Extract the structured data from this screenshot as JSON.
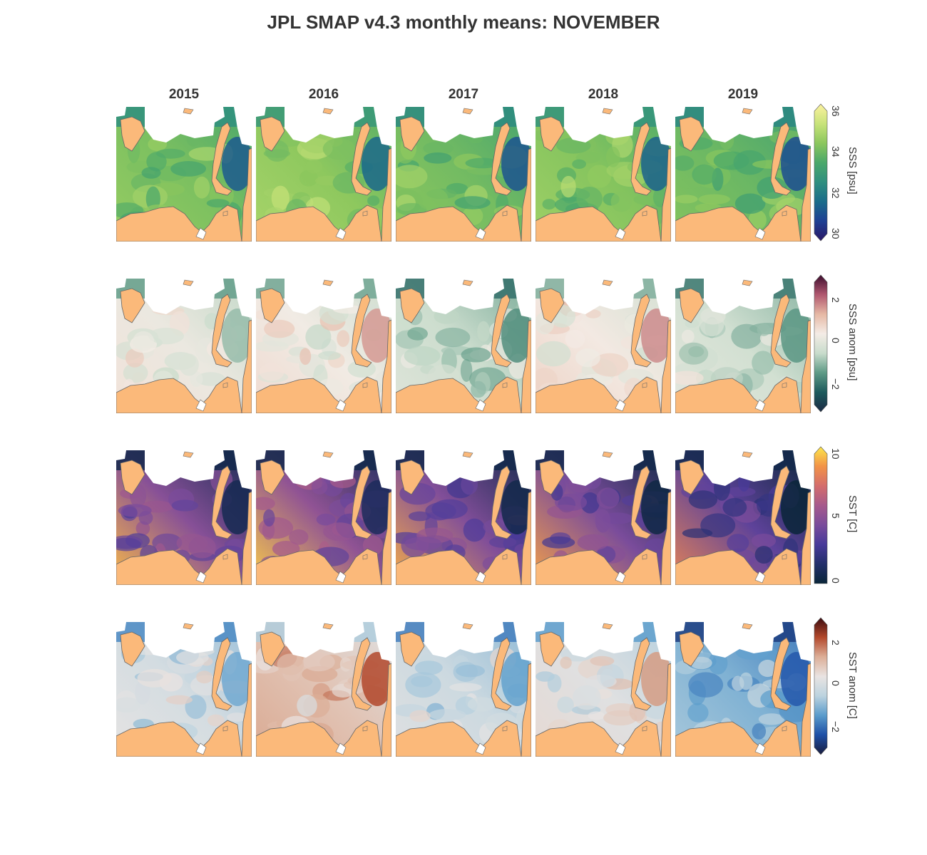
{
  "title": "JPL SMAP v4.3 monthly means: NOVEMBER",
  "years": [
    "2015",
    "2016",
    "2017",
    "2018",
    "2019"
  ],
  "colors": {
    "land": "#fbb97a",
    "coast": "#666666",
    "nodata": "#ffffff"
  },
  "rows": [
    {
      "id": "sss",
      "colorbar": {
        "label": "SSS [psu]",
        "ticks": [
          "30",
          "32",
          "34",
          "36"
        ],
        "tick_values": [
          30,
          32,
          34,
          36
        ],
        "range": [
          30,
          36
        ],
        "extend": "both",
        "colormap": "haline",
        "stops": [
          "#2a1866",
          "#1e3f93",
          "#1a6c8a",
          "#2f8f7f",
          "#4aa86a",
          "#8cc75d",
          "#c8e37a",
          "#fdf2a0"
        ]
      },
      "panel_levels": [
        0.68,
        0.72,
        0.66,
        0.7,
        0.64
      ]
    },
    {
      "id": "sss_anom",
      "colorbar": {
        "label": "SSS anom [psu]",
        "ticks": [
          "−2",
          "0",
          "2"
        ],
        "tick_values": [
          -2,
          0,
          2
        ],
        "range": [
          -3,
          3
        ],
        "extend": "both",
        "colormap": "curl",
        "stops": [
          "#1b2a44",
          "#1d5a5c",
          "#5e9a86",
          "#c9dccc",
          "#f4ece6",
          "#e6b8a4",
          "#b0576f",
          "#3d0e2e"
        ]
      },
      "panel_levels": [
        0.54,
        0.56,
        0.44,
        0.58,
        0.46
      ]
    },
    {
      "id": "sst",
      "colorbar": {
        "label": "SST [C]",
        "ticks": [
          "0",
          "5",
          "10"
        ],
        "tick_values": [
          0,
          5,
          10
        ],
        "range": [
          0,
          10
        ],
        "extend": "max",
        "colormap": "thermal",
        "stops": [
          "#0a2639",
          "#232f6b",
          "#483a9a",
          "#7a4c9b",
          "#a65a8c",
          "#d46d6c",
          "#f29347",
          "#fde74c"
        ]
      },
      "panel_levels": [
        0.42,
        0.45,
        0.4,
        0.38,
        0.3
      ]
    },
    {
      "id": "sst_anom",
      "colorbar": {
        "label": "SST anom [C]",
        "ticks": [
          "−2",
          "0",
          "2"
        ],
        "tick_values": [
          -2,
          0,
          2
        ],
        "range": [
          -3,
          3
        ],
        "extend": "both",
        "colormap": "balance",
        "stops": [
          "#191d3f",
          "#1e4fa6",
          "#5a9ccc",
          "#bcd3df",
          "#e9e4e2",
          "#dcae97",
          "#b3492c",
          "#3d0c10"
        ]
      },
      "panel_levels": [
        0.5,
        0.66,
        0.48,
        0.54,
        0.34
      ]
    }
  ]
}
